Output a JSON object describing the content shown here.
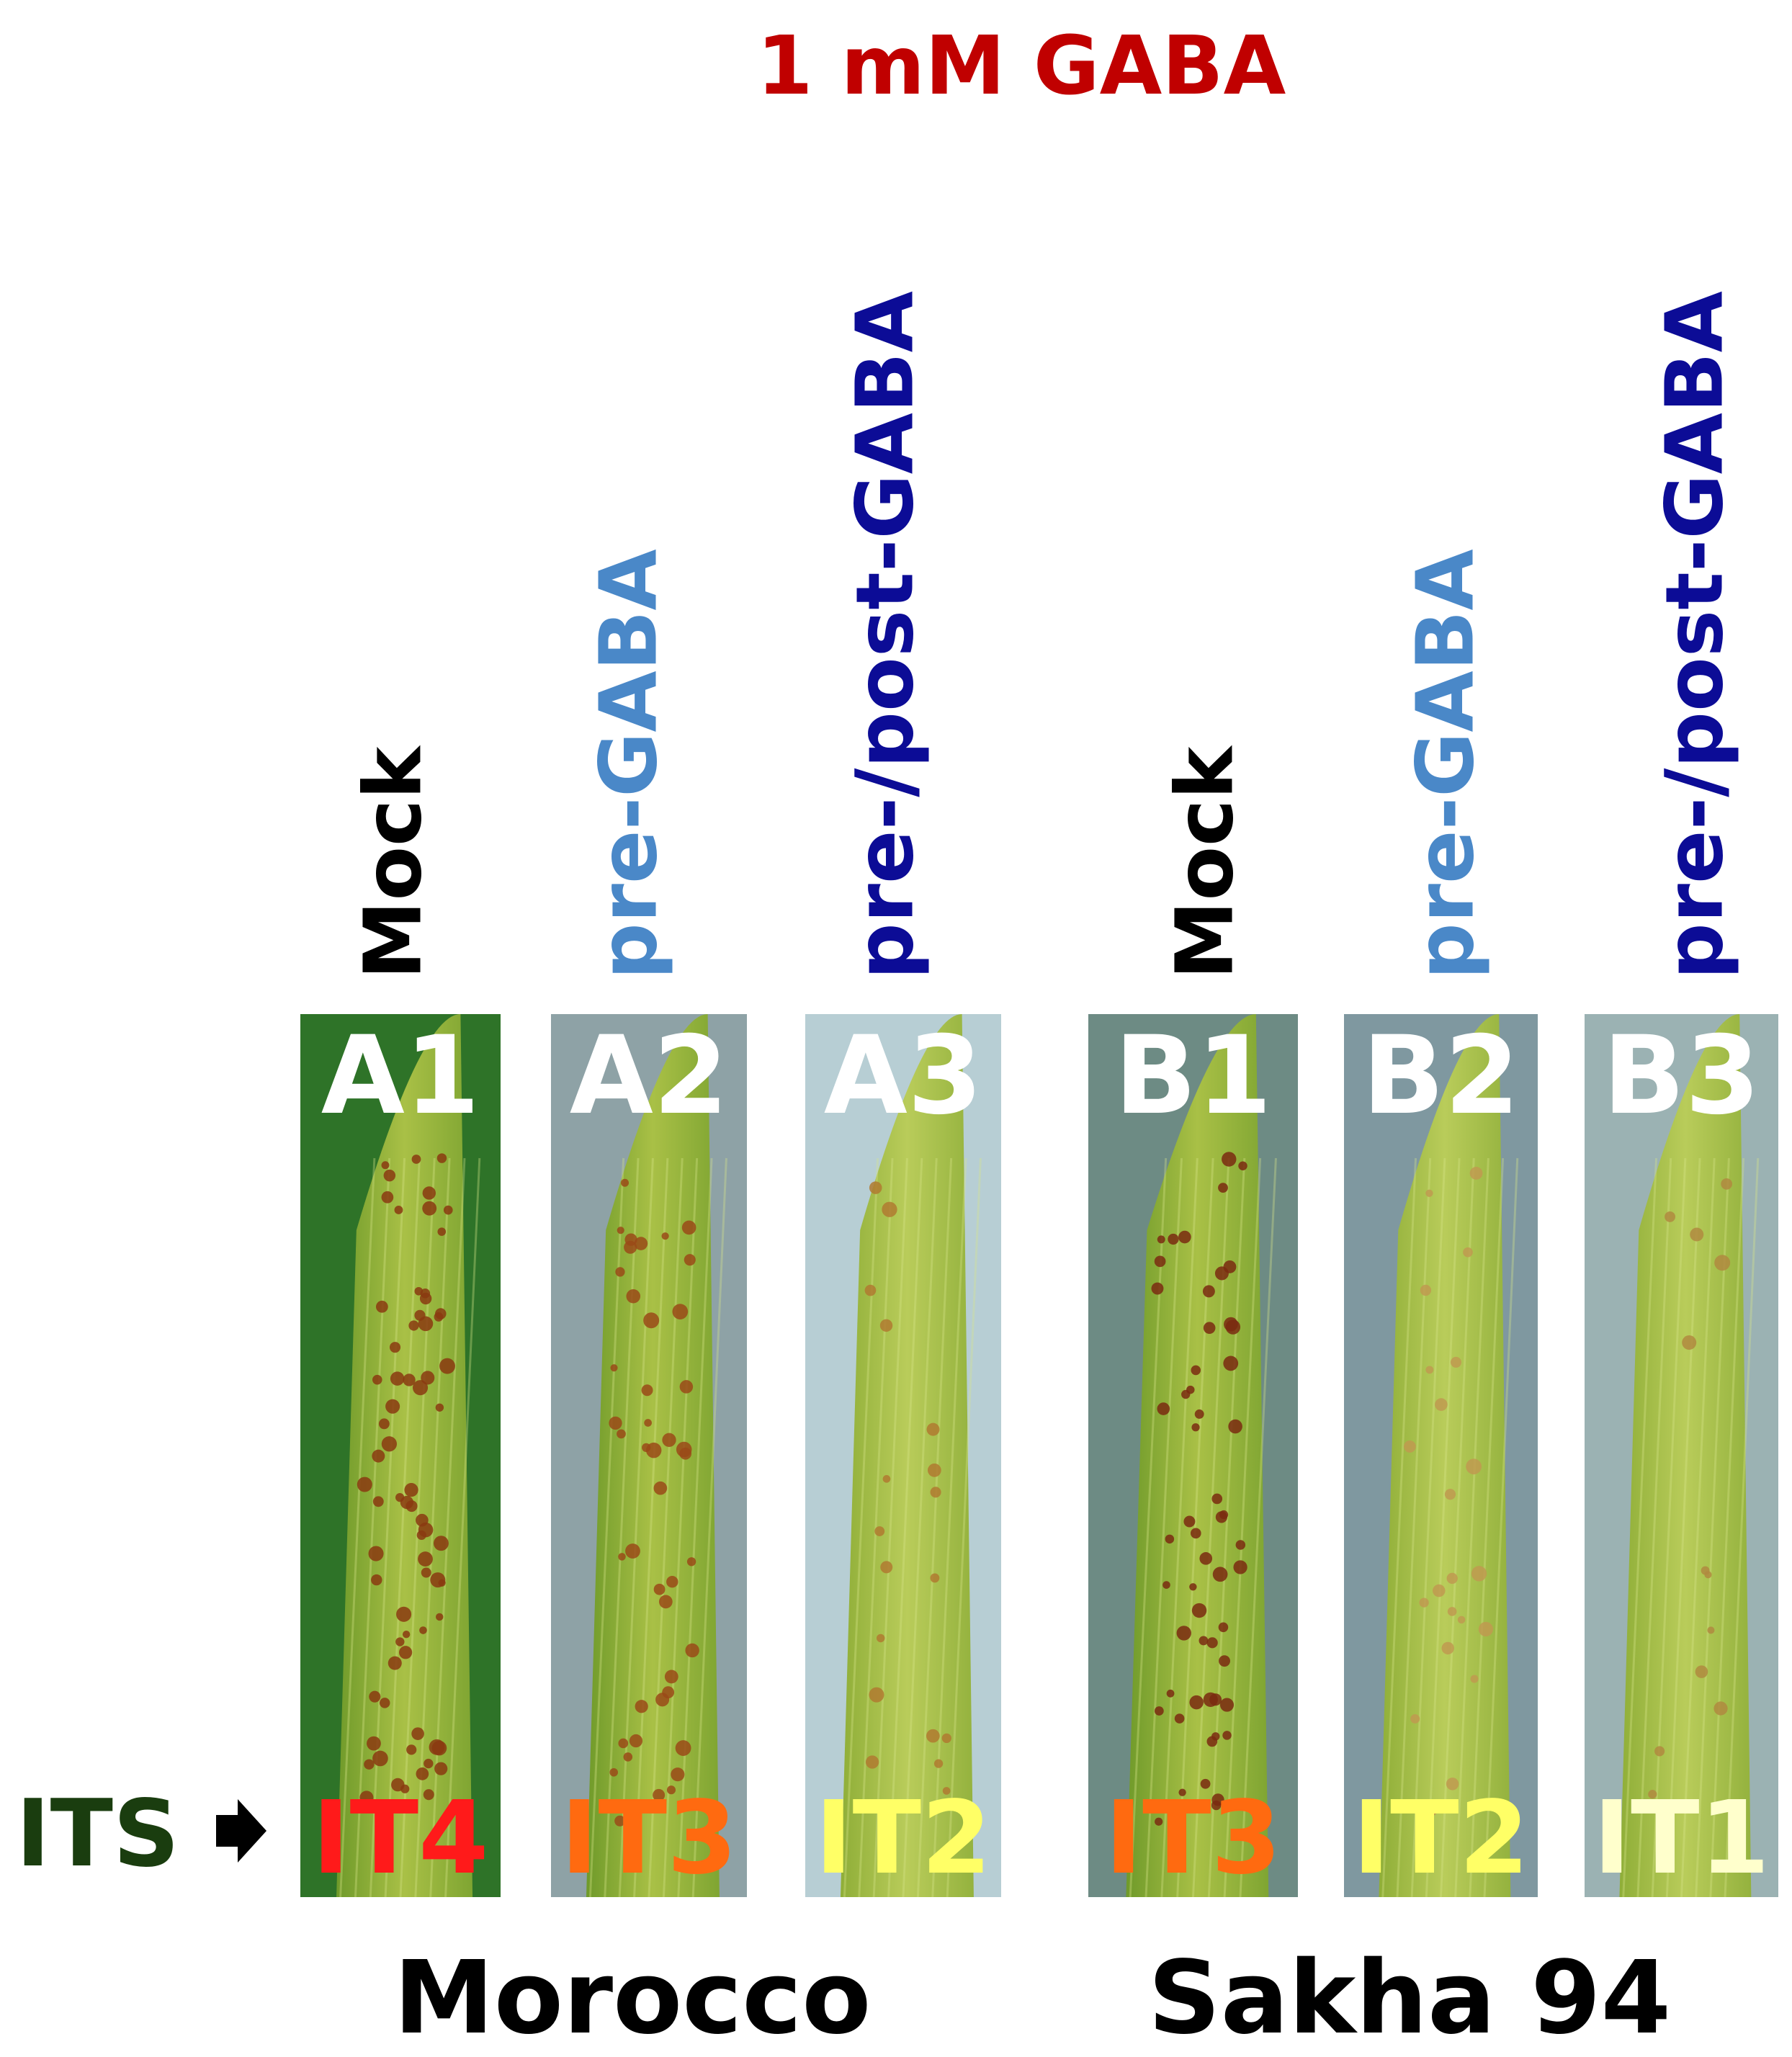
{
  "title": "1 mM GABA",
  "its_label": "ITS",
  "panels": [
    {
      "treatment": "Mock",
      "id": "A1",
      "infection_type": "IT4"
    },
    {
      "treatment": "pre-GABA",
      "id": "A2",
      "infection_type": "IT3"
    },
    {
      "treatment": "pre-/post-GABA",
      "id": "A3",
      "infection_type": "IT2"
    },
    {
      "treatment": "Mock",
      "id": "B1",
      "infection_type": "IT3"
    },
    {
      "treatment": "pre-GABA",
      "id": "B2",
      "infection_type": "IT2"
    },
    {
      "treatment": "pre-/post-GABA",
      "id": "B3",
      "infection_type": "IT1"
    }
  ],
  "groups": [
    "Morocco",
    "Sakha 94"
  ]
}
